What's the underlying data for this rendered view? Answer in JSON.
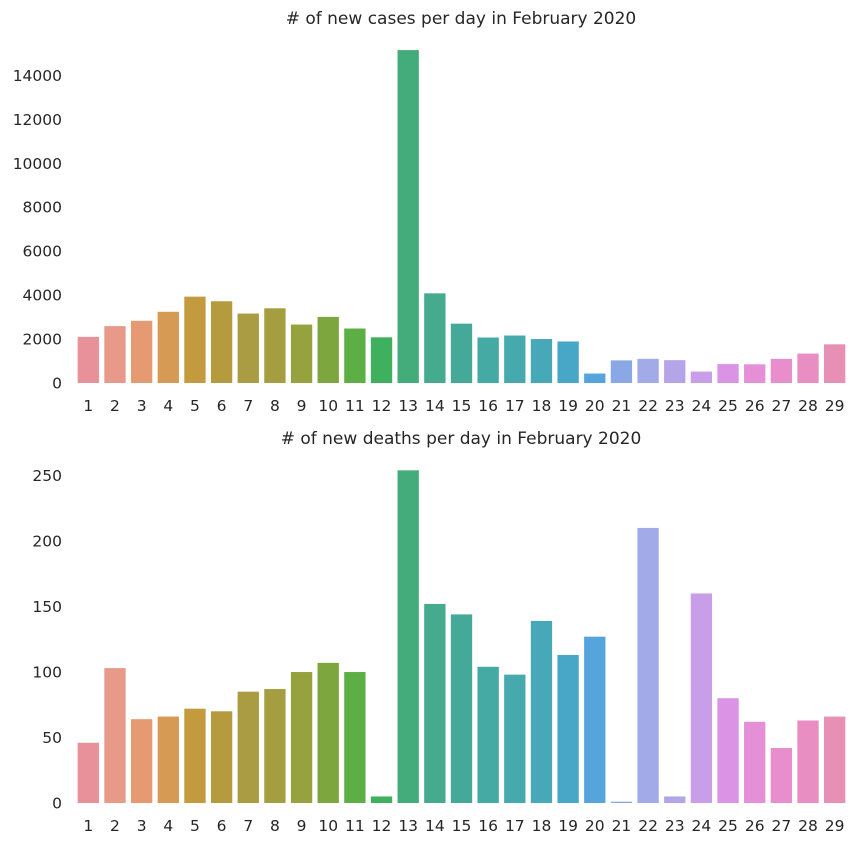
{
  "chart_data": [
    {
      "type": "bar",
      "title": "# of new cases per day in February 2020",
      "xlabel": "",
      "ylabel": "",
      "ylim": [
        0,
        15200
      ],
      "yticks": [
        0,
        2000,
        4000,
        6000,
        8000,
        10000,
        12000,
        14000
      ],
      "categories": [
        "1",
        "2",
        "3",
        "4",
        "5",
        "6",
        "7",
        "8",
        "9",
        "10",
        "11",
        "12",
        "13",
        "14",
        "15",
        "16",
        "17",
        "18",
        "19",
        "20",
        "21",
        "22",
        "23",
        "24",
        "25",
        "26",
        "27",
        "28",
        "29"
      ],
      "values": [
        2100,
        2590,
        2830,
        3240,
        3930,
        3720,
        3160,
        3400,
        2660,
        3010,
        2480,
        2080,
        15150,
        4080,
        2700,
        2070,
        2160,
        2000,
        1890,
        430,
        1030,
        1100,
        1040,
        520,
        860,
        850,
        1100,
        1340,
        1760
      ],
      "colors": [
        "#e8919a",
        "#e89a8a",
        "#e69a72",
        "#d69a54",
        "#c49a3e",
        "#b69a3e",
        "#aa9c42",
        "#a49e40",
        "#95a23e",
        "#7ea63e",
        "#5caf44",
        "#3fb05d",
        "#44ab7b",
        "#45aa8e",
        "#44a999",
        "#45a9a4",
        "#46a9ad",
        "#47a8b8",
        "#48a6c6",
        "#55a5dc",
        "#8aa8e6",
        "#a3aae8",
        "#b3a5e8",
        "#c79ee7",
        "#db94e5",
        "#e58fd7",
        "#e88ecc",
        "#e88ec2",
        "#e88fb5"
      ]
    },
    {
      "type": "bar",
      "title": "# of new deaths per day in February 2020",
      "xlabel": "",
      "ylabel": "",
      "ylim": [
        0,
        255
      ],
      "yticks": [
        0,
        50,
        100,
        150,
        200,
        250
      ],
      "categories": [
        "1",
        "2",
        "3",
        "4",
        "5",
        "6",
        "7",
        "8",
        "9",
        "10",
        "11",
        "12",
        "13",
        "14",
        "15",
        "16",
        "17",
        "18",
        "19",
        "20",
        "21",
        "22",
        "23",
        "24",
        "25",
        "26",
        "27",
        "28",
        "29"
      ],
      "values": [
        46,
        103,
        64,
        66,
        72,
        70,
        85,
        87,
        100,
        107,
        100,
        5,
        254,
        152,
        144,
        104,
        98,
        139,
        113,
        127,
        1,
        210,
        5,
        160,
        80,
        62,
        42,
        63,
        66
      ],
      "colors": [
        "#e8919a",
        "#e89a8a",
        "#e69a72",
        "#d69a54",
        "#c49a3e",
        "#b69a3e",
        "#aa9c42",
        "#a49e40",
        "#95a23e",
        "#7ea63e",
        "#5caf44",
        "#3fb05d",
        "#44ab7b",
        "#45aa8e",
        "#44a999",
        "#45a9a4",
        "#46a9ad",
        "#47a8b8",
        "#48a6c6",
        "#55a5dc",
        "#8aa8e6",
        "#a3aae8",
        "#b3a5e8",
        "#c79ee7",
        "#db94e5",
        "#e58fd7",
        "#e88ecc",
        "#e88ec2",
        "#e88fb5"
      ]
    }
  ]
}
